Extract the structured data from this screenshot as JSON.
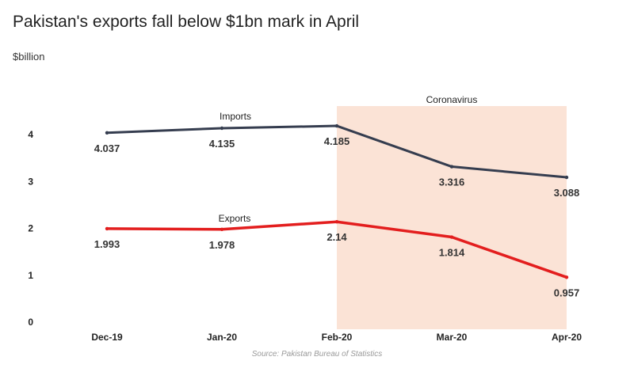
{
  "header": {
    "title": "Pakistan's exports fall below $1bn mark in April",
    "unit": "$billion"
  },
  "footer": {
    "source": "Source: Pakistan Bureau of Statistics"
  },
  "colors": {
    "imports": "#353d4f",
    "exports": "#e31e1e",
    "shade": "#fbe3d6"
  },
  "chart_data": {
    "type": "line",
    "categories": [
      "Dec-19",
      "Jan-20",
      "Feb-20",
      "Mar-20",
      "Apr-20"
    ],
    "series": [
      {
        "name": "Imports",
        "values": [
          4.037,
          4.135,
          4.185,
          3.316,
          3.088
        ],
        "labels": [
          "4.037",
          "4.135",
          "4.185",
          "3.316",
          "3.088"
        ]
      },
      {
        "name": "Exports",
        "values": [
          1.993,
          1.978,
          2.14,
          1.814,
          0.957
        ],
        "labels": [
          "1.993",
          "1.978",
          "2.14",
          "1.814",
          "0.957"
        ]
      }
    ],
    "yticks": [
      "0",
      "1",
      "2",
      "3",
      "4"
    ],
    "ylim": [
      0,
      4.6
    ],
    "shaded_region": {
      "from": "Feb-20",
      "to": "Apr-20",
      "label": "Coronavirus"
    },
    "grid": false,
    "legend": "inline labels"
  }
}
